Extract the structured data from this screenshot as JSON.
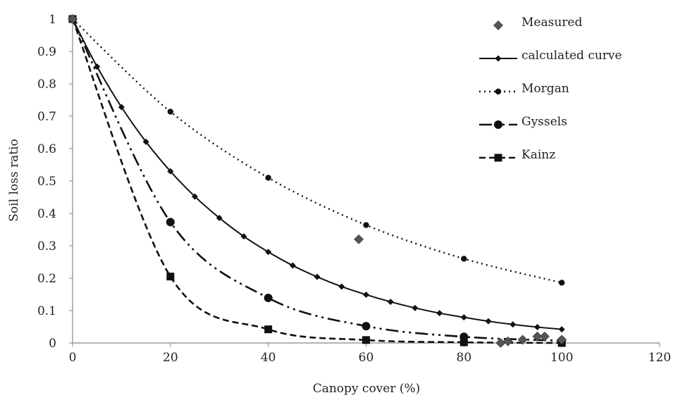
{
  "chart_data": {
    "type": "line",
    "title": "",
    "xlabel": "Canopy cover (%)",
    "ylabel": "Soil loss ratio",
    "xlim": [
      0,
      120
    ],
    "ylim": [
      0,
      1
    ],
    "x_ticks": [
      0,
      20,
      40,
      60,
      80,
      100,
      120
    ],
    "y_ticks": [
      0,
      0.1,
      0.2,
      0.3,
      0.4,
      0.5,
      0.6,
      0.7,
      0.8,
      0.9,
      1
    ],
    "x_tick_labels": [
      "0",
      "20",
      "40",
      "60",
      "80",
      "100",
      "120"
    ],
    "y_tick_labels": [
      "0",
      "0.1",
      "0.2",
      "0.3",
      "0.4",
      "0.5",
      "0.6",
      "0.7",
      "0.8",
      "0.9",
      "1"
    ],
    "grid": false,
    "legend_position": "top-right",
    "series": [
      {
        "name": "Measured",
        "style": "markers-only",
        "marker": "diamond",
        "color": "#555555",
        "points": [
          [
            0,
            1.0
          ],
          [
            58.5,
            0.32
          ],
          [
            87.5,
            0.0
          ],
          [
            89,
            0.005
          ],
          [
            92,
            0.01
          ],
          [
            95,
            0.02
          ],
          [
            96.5,
            0.02
          ],
          [
            100,
            0.01
          ]
        ]
      },
      {
        "name": "calculated curve",
        "style": "solid",
        "marker": "small-diamond",
        "color": "#111111",
        "points": [
          [
            0,
            1.0
          ],
          [
            5,
            0.853
          ],
          [
            10,
            0.728
          ],
          [
            15,
            0.621
          ],
          [
            20,
            0.53
          ],
          [
            25,
            0.452
          ],
          [
            30,
            0.386
          ],
          [
            35,
            0.329
          ],
          [
            40,
            0.281
          ],
          [
            45,
            0.239
          ],
          [
            50,
            0.204
          ],
          [
            55,
            0.174
          ],
          [
            60,
            0.149
          ],
          [
            65,
            0.127
          ],
          [
            70,
            0.108
          ],
          [
            75,
            0.092
          ],
          [
            80,
            0.079
          ],
          [
            85,
            0.067
          ],
          [
            90,
            0.057
          ],
          [
            95,
            0.049
          ],
          [
            100,
            0.042
          ]
        ]
      },
      {
        "name": "Morgan",
        "style": "dotted",
        "marker": "small-circle",
        "color": "#111111",
        "points": [
          [
            0,
            1.0
          ],
          [
            20,
            0.714
          ],
          [
            40,
            0.51
          ],
          [
            60,
            0.364
          ],
          [
            80,
            0.26
          ],
          [
            100,
            0.186
          ]
        ]
      },
      {
        "name": "Gyssels",
        "style": "dash-dot-dot",
        "marker": "circle",
        "color": "#111111",
        "points": [
          [
            0,
            1.0
          ],
          [
            20,
            0.373
          ],
          [
            40,
            0.139
          ],
          [
            60,
            0.052
          ],
          [
            80,
            0.019
          ],
          [
            100,
            0.007
          ]
        ]
      },
      {
        "name": "Kainz",
        "style": "dashed",
        "marker": "square",
        "color": "#111111",
        "points": [
          [
            0,
            1.0
          ],
          [
            20,
            0.205
          ],
          [
            40,
            0.042
          ],
          [
            60,
            0.009
          ],
          [
            80,
            0.002
          ],
          [
            100,
            0.0
          ]
        ]
      }
    ]
  }
}
